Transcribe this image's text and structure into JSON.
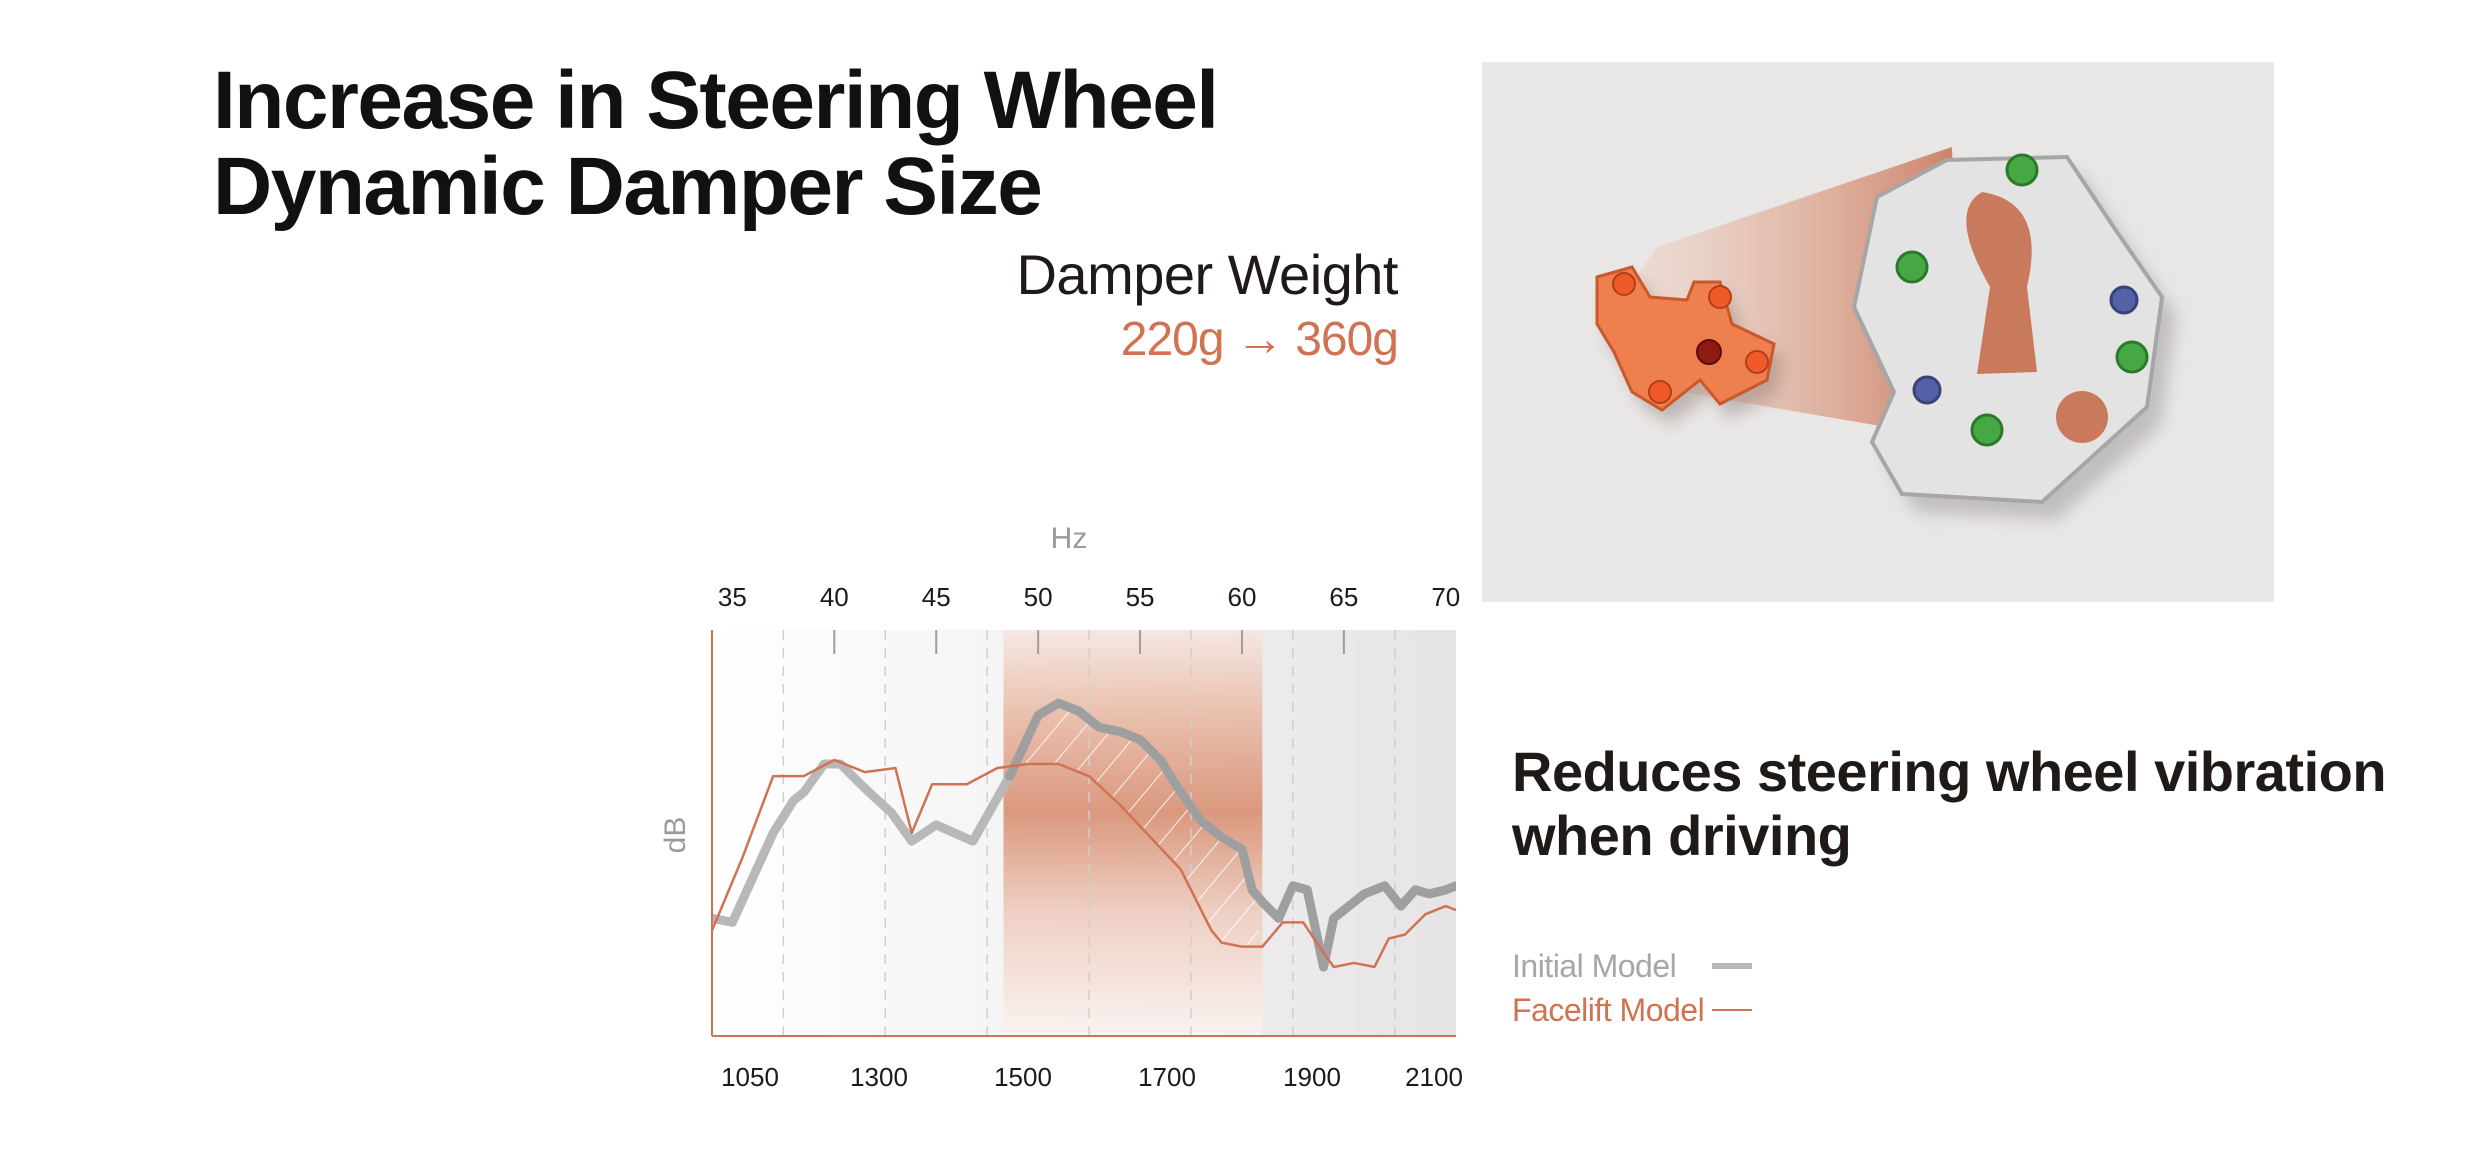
{
  "title": {
    "line1": "Increase in Steering Wheel",
    "line2": "Dynamic Damper Size"
  },
  "damper_weight": {
    "label": "Damper Weight",
    "value": "220g → 360g"
  },
  "description": {
    "line1": "Reduces steering wheel vibration",
    "line2": "when driving"
  },
  "legend": {
    "initial": "Initial Model",
    "facelift": "Facelift Model"
  },
  "colors": {
    "accent": "#cf7352",
    "initial_line": "#b8b8b8",
    "text": "#1f1a17"
  },
  "chart_data": {
    "type": "line",
    "title": "",
    "top_axis_label": "Hz",
    "ylabel": "dB",
    "xlabel": "",
    "top_ticks": [
      35,
      40,
      45,
      50,
      55,
      60,
      65,
      70
    ],
    "bottom_ticks": [
      1050,
      1300,
      1500,
      1700,
      1900,
      2100
    ],
    "xlim": [
      34,
      70.5
    ],
    "ylim": [
      0,
      100
    ],
    "highlight_range_hz": [
      48.3,
      61
    ],
    "series": [
      {
        "name": "Initial Model",
        "x": [
          34,
          35,
          37,
          38,
          38.5,
          39.5,
          40.3,
          41.5,
          42.8,
          43.8,
          45,
          46.8,
          48.6,
          50,
          51,
          52,
          53,
          54,
          55,
          56,
          57,
          58,
          59,
          60,
          60.5,
          61,
          61.8,
          62.5,
          63.2,
          64,
          64.5,
          65,
          66,
          67,
          67.8,
          68.5,
          69.2,
          70,
          70.5
        ],
        "y": [
          29,
          28,
          50,
          58,
          60,
          67,
          67,
          61,
          55,
          48,
          52,
          48,
          64,
          79,
          82,
          80,
          76,
          75,
          73,
          68,
          60,
          53,
          49,
          46,
          36,
          33,
          29,
          37,
          36,
          17,
          29,
          31,
          35,
          37,
          32,
          36,
          35,
          36,
          37
        ]
      },
      {
        "name": "Facelift Model",
        "x": [
          34,
          35.5,
          37,
          38.5,
          40,
          41.5,
          43,
          43.8,
          44.8,
          46.5,
          48,
          49.5,
          51,
          52.5,
          54,
          55.5,
          57,
          58.5,
          59,
          60,
          61,
          62,
          63,
          63.8,
          64.5,
          65.5,
          66.5,
          67.2,
          68,
          69,
          70,
          70.5
        ],
        "y": [
          26,
          44,
          64,
          64,
          68,
          65,
          66,
          50,
          62,
          62,
          66,
          67,
          67,
          64,
          57,
          49,
          41,
          26,
          23,
          22,
          22,
          28,
          28,
          22,
          17,
          18,
          17,
          24,
          25,
          30,
          32,
          31
        ]
      }
    ]
  }
}
